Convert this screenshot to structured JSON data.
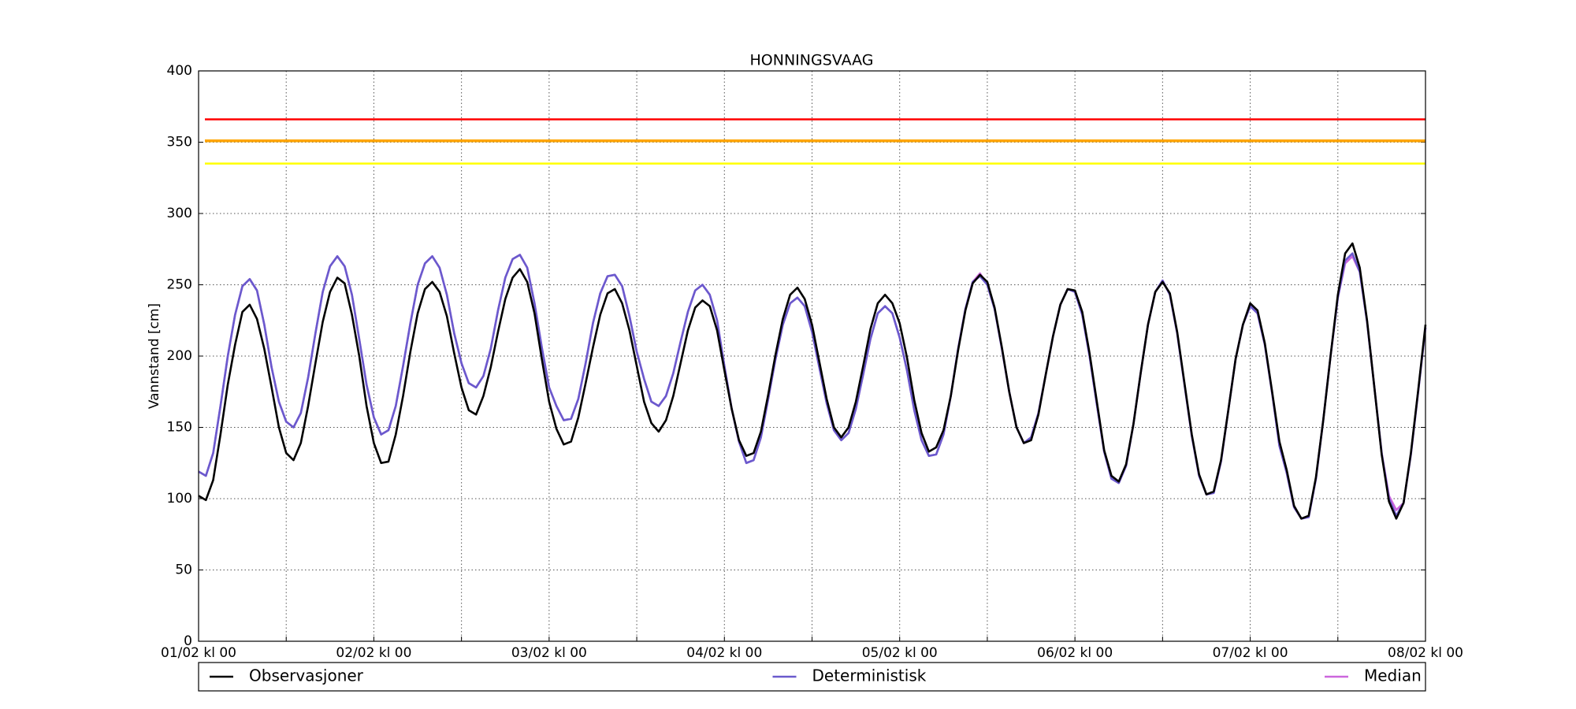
{
  "chart_data": {
    "type": "line",
    "title": "HONNINGSVAAG",
    "ylabel": "Vannstand [cm]",
    "xlim": [
      0,
      168
    ],
    "ylim": [
      0,
      400
    ],
    "yticks": [
      0,
      50,
      100,
      150,
      200,
      250,
      300,
      350,
      400
    ],
    "xticks": [
      {
        "value": 0,
        "label": "01/02 kl 00"
      },
      {
        "value": 24,
        "label": "02/02 kl 00"
      },
      {
        "value": 48,
        "label": "03/02 kl 00"
      },
      {
        "value": 72,
        "label": "04/02 kl 00"
      },
      {
        "value": 96,
        "label": "05/02 kl 00"
      },
      {
        "value": 120,
        "label": "06/02 kl 00"
      },
      {
        "value": 144,
        "label": "07/02 kl 00"
      },
      {
        "value": 168,
        "label": "08/02 kl 00"
      }
    ],
    "xminor_ticks": [
      12,
      36,
      60,
      84,
      108,
      132,
      156
    ],
    "grid": true,
    "legend": "bottom",
    "thresholds": [
      {
        "value": 366,
        "color": "#ff0000"
      },
      {
        "value": 351,
        "color": "#ffa500"
      },
      {
        "value": 335,
        "color": "#ffff00"
      }
    ],
    "x": [
      0,
      1,
      2,
      3,
      4,
      5,
      6,
      7,
      8,
      9,
      10,
      11,
      12,
      13,
      14,
      15,
      16,
      17,
      18,
      19,
      20,
      21,
      22,
      23,
      24,
      25,
      26,
      27,
      28,
      29,
      30,
      31,
      32,
      33,
      34,
      35,
      36,
      37,
      38,
      39,
      40,
      41,
      42,
      43,
      44,
      45,
      46,
      47,
      48,
      49,
      50,
      51,
      52,
      53,
      54,
      55,
      56,
      57,
      58,
      59,
      60,
      61,
      62,
      63,
      64,
      65,
      66,
      67,
      68,
      69,
      70,
      71,
      72,
      73,
      74,
      75,
      76,
      77,
      78,
      79,
      80,
      81,
      82,
      83,
      84,
      85,
      86,
      87,
      88,
      89,
      90,
      91,
      92,
      93,
      94,
      95,
      96,
      97,
      98,
      99,
      100,
      101,
      102,
      103,
      104,
      105,
      106,
      107,
      108,
      109,
      110,
      111,
      112,
      113,
      114,
      115,
      116,
      117,
      118,
      119,
      120,
      121,
      122,
      123,
      124,
      125,
      126,
      127,
      128,
      129,
      130,
      131,
      132,
      133,
      134,
      135,
      136,
      137,
      138,
      139,
      140,
      141,
      142,
      143,
      144,
      145,
      146,
      147,
      148,
      149,
      150,
      151,
      152,
      153,
      154,
      155,
      156,
      157,
      158,
      159,
      160,
      161,
      162,
      163,
      164,
      165,
      166,
      167,
      168
    ],
    "series": [
      {
        "name": "Observasjoner",
        "color": "#000000",
        "values": [
          102,
          99,
          113,
          145,
          180,
          208,
          231,
          236,
          226,
          205,
          178,
          150,
          132,
          127,
          139,
          165,
          195,
          224,
          245,
          255,
          251,
          229,
          200,
          165,
          139,
          125,
          126,
          145,
          172,
          203,
          230,
          247,
          252,
          245,
          228,
          202,
          178,
          162,
          159,
          172,
          192,
          217,
          240,
          255,
          261,
          252,
          230,
          198,
          168,
          149,
          138,
          140,
          157,
          181,
          206,
          229,
          244,
          247,
          237,
          218,
          193,
          168,
          153,
          147,
          155,
          172,
          195,
          218,
          234,
          239,
          235,
          218,
          190,
          163,
          141,
          130,
          132,
          147,
          173,
          201,
          226,
          243,
          248,
          240,
          222,
          196,
          170,
          150,
          143,
          150,
          168,
          193,
          219,
          237,
          243,
          237,
          223,
          199,
          169,
          146,
          133,
          136,
          148,
          172,
          204,
          232,
          251,
          257,
          252,
          234,
          206,
          175,
          150,
          139,
          141,
          159,
          187,
          214,
          236,
          247,
          246,
          231,
          202,
          168,
          134,
          116,
          112,
          124,
          152,
          188,
          222,
          245,
          252,
          244,
          217,
          181,
          145,
          117,
          103,
          105,
          127,
          162,
          198,
          222,
          237,
          232,
          209,
          175,
          140,
          120,
          95,
          86,
          88,
          115,
          155,
          200,
          243,
          272,
          279,
          262,
          225,
          178,
          131,
          98,
          86,
          97,
          132,
          176,
          222
        ]
      },
      {
        "name": "Deterministisk",
        "color": "#6a5acd",
        "values": [
          119,
          116,
          132,
          165,
          200,
          229,
          249,
          254,
          246,
          222,
          192,
          168,
          154,
          150,
          160,
          185,
          216,
          245,
          263,
          270,
          263,
          243,
          212,
          180,
          157,
          145,
          148,
          165,
          193,
          223,
          250,
          265,
          270,
          262,
          243,
          216,
          195,
          181,
          178,
          186,
          205,
          232,
          255,
          268,
          271,
          262,
          237,
          206,
          178,
          165,
          155,
          156,
          170,
          195,
          223,
          244,
          256,
          257,
          249,
          228,
          203,
          184,
          168,
          165,
          172,
          188,
          210,
          231,
          246,
          250,
          243,
          225,
          193,
          163,
          140,
          125,
          127,
          143,
          170,
          198,
          222,
          237,
          241,
          235,
          217,
          192,
          167,
          148,
          141,
          146,
          163,
          187,
          212,
          230,
          235,
          230,
          213,
          190,
          162,
          141,
          130,
          131,
          145,
          172,
          205,
          233,
          252,
          256,
          250,
          233,
          205,
          175,
          150,
          139,
          143,
          160,
          187,
          214,
          236,
          247,
          245,
          229,
          200,
          166,
          133,
          114,
          111,
          123,
          152,
          188,
          222,
          245,
          253,
          243,
          216,
          180,
          144,
          116,
          103,
          104,
          126,
          162,
          198,
          222,
          235,
          230,
          208,
          174,
          137,
          118,
          94,
          86,
          87,
          114,
          155,
          200,
          241,
          267,
          272,
          259,
          224,
          178,
          132,
          100,
          88,
          97,
          131,
          175,
          220
        ]
      },
      {
        "name": "Median",
        "color": "#cc66dd",
        "values": [
          119,
          116,
          132,
          165,
          200,
          229,
          249,
          254,
          246,
          222,
          192,
          168,
          154,
          150,
          160,
          185,
          216,
          245,
          263,
          270,
          263,
          243,
          212,
          180,
          157,
          145,
          148,
          165,
          193,
          223,
          250,
          265,
          270,
          262,
          243,
          216,
          195,
          181,
          178,
          186,
          205,
          232,
          255,
          268,
          271,
          262,
          237,
          206,
          178,
          165,
          155,
          156,
          170,
          195,
          223,
          244,
          256,
          257,
          249,
          228,
          203,
          184,
          168,
          165,
          172,
          188,
          210,
          231,
          246,
          250,
          243,
          225,
          193,
          163,
          140,
          125,
          127,
          143,
          170,
          198,
          222,
          237,
          241,
          235,
          217,
          192,
          167,
          148,
          141,
          146,
          163,
          187,
          212,
          230,
          235,
          230,
          213,
          190,
          162,
          141,
          130,
          131,
          145,
          172,
          205,
          233,
          252,
          258,
          250,
          233,
          205,
          175,
          150,
          139,
          143,
          160,
          187,
          214,
          236,
          247,
          245,
          229,
          200,
          166,
          133,
          114,
          111,
          123,
          152,
          188,
          222,
          245,
          253,
          243,
          216,
          180,
          144,
          116,
          103,
          104,
          126,
          162,
          198,
          222,
          235,
          230,
          208,
          174,
          137,
          118,
          94,
          86,
          87,
          114,
          155,
          200,
          241,
          265,
          270,
          259,
          224,
          178,
          132,
          102,
          92,
          97,
          131,
          175,
          220
        ]
      }
    ]
  }
}
